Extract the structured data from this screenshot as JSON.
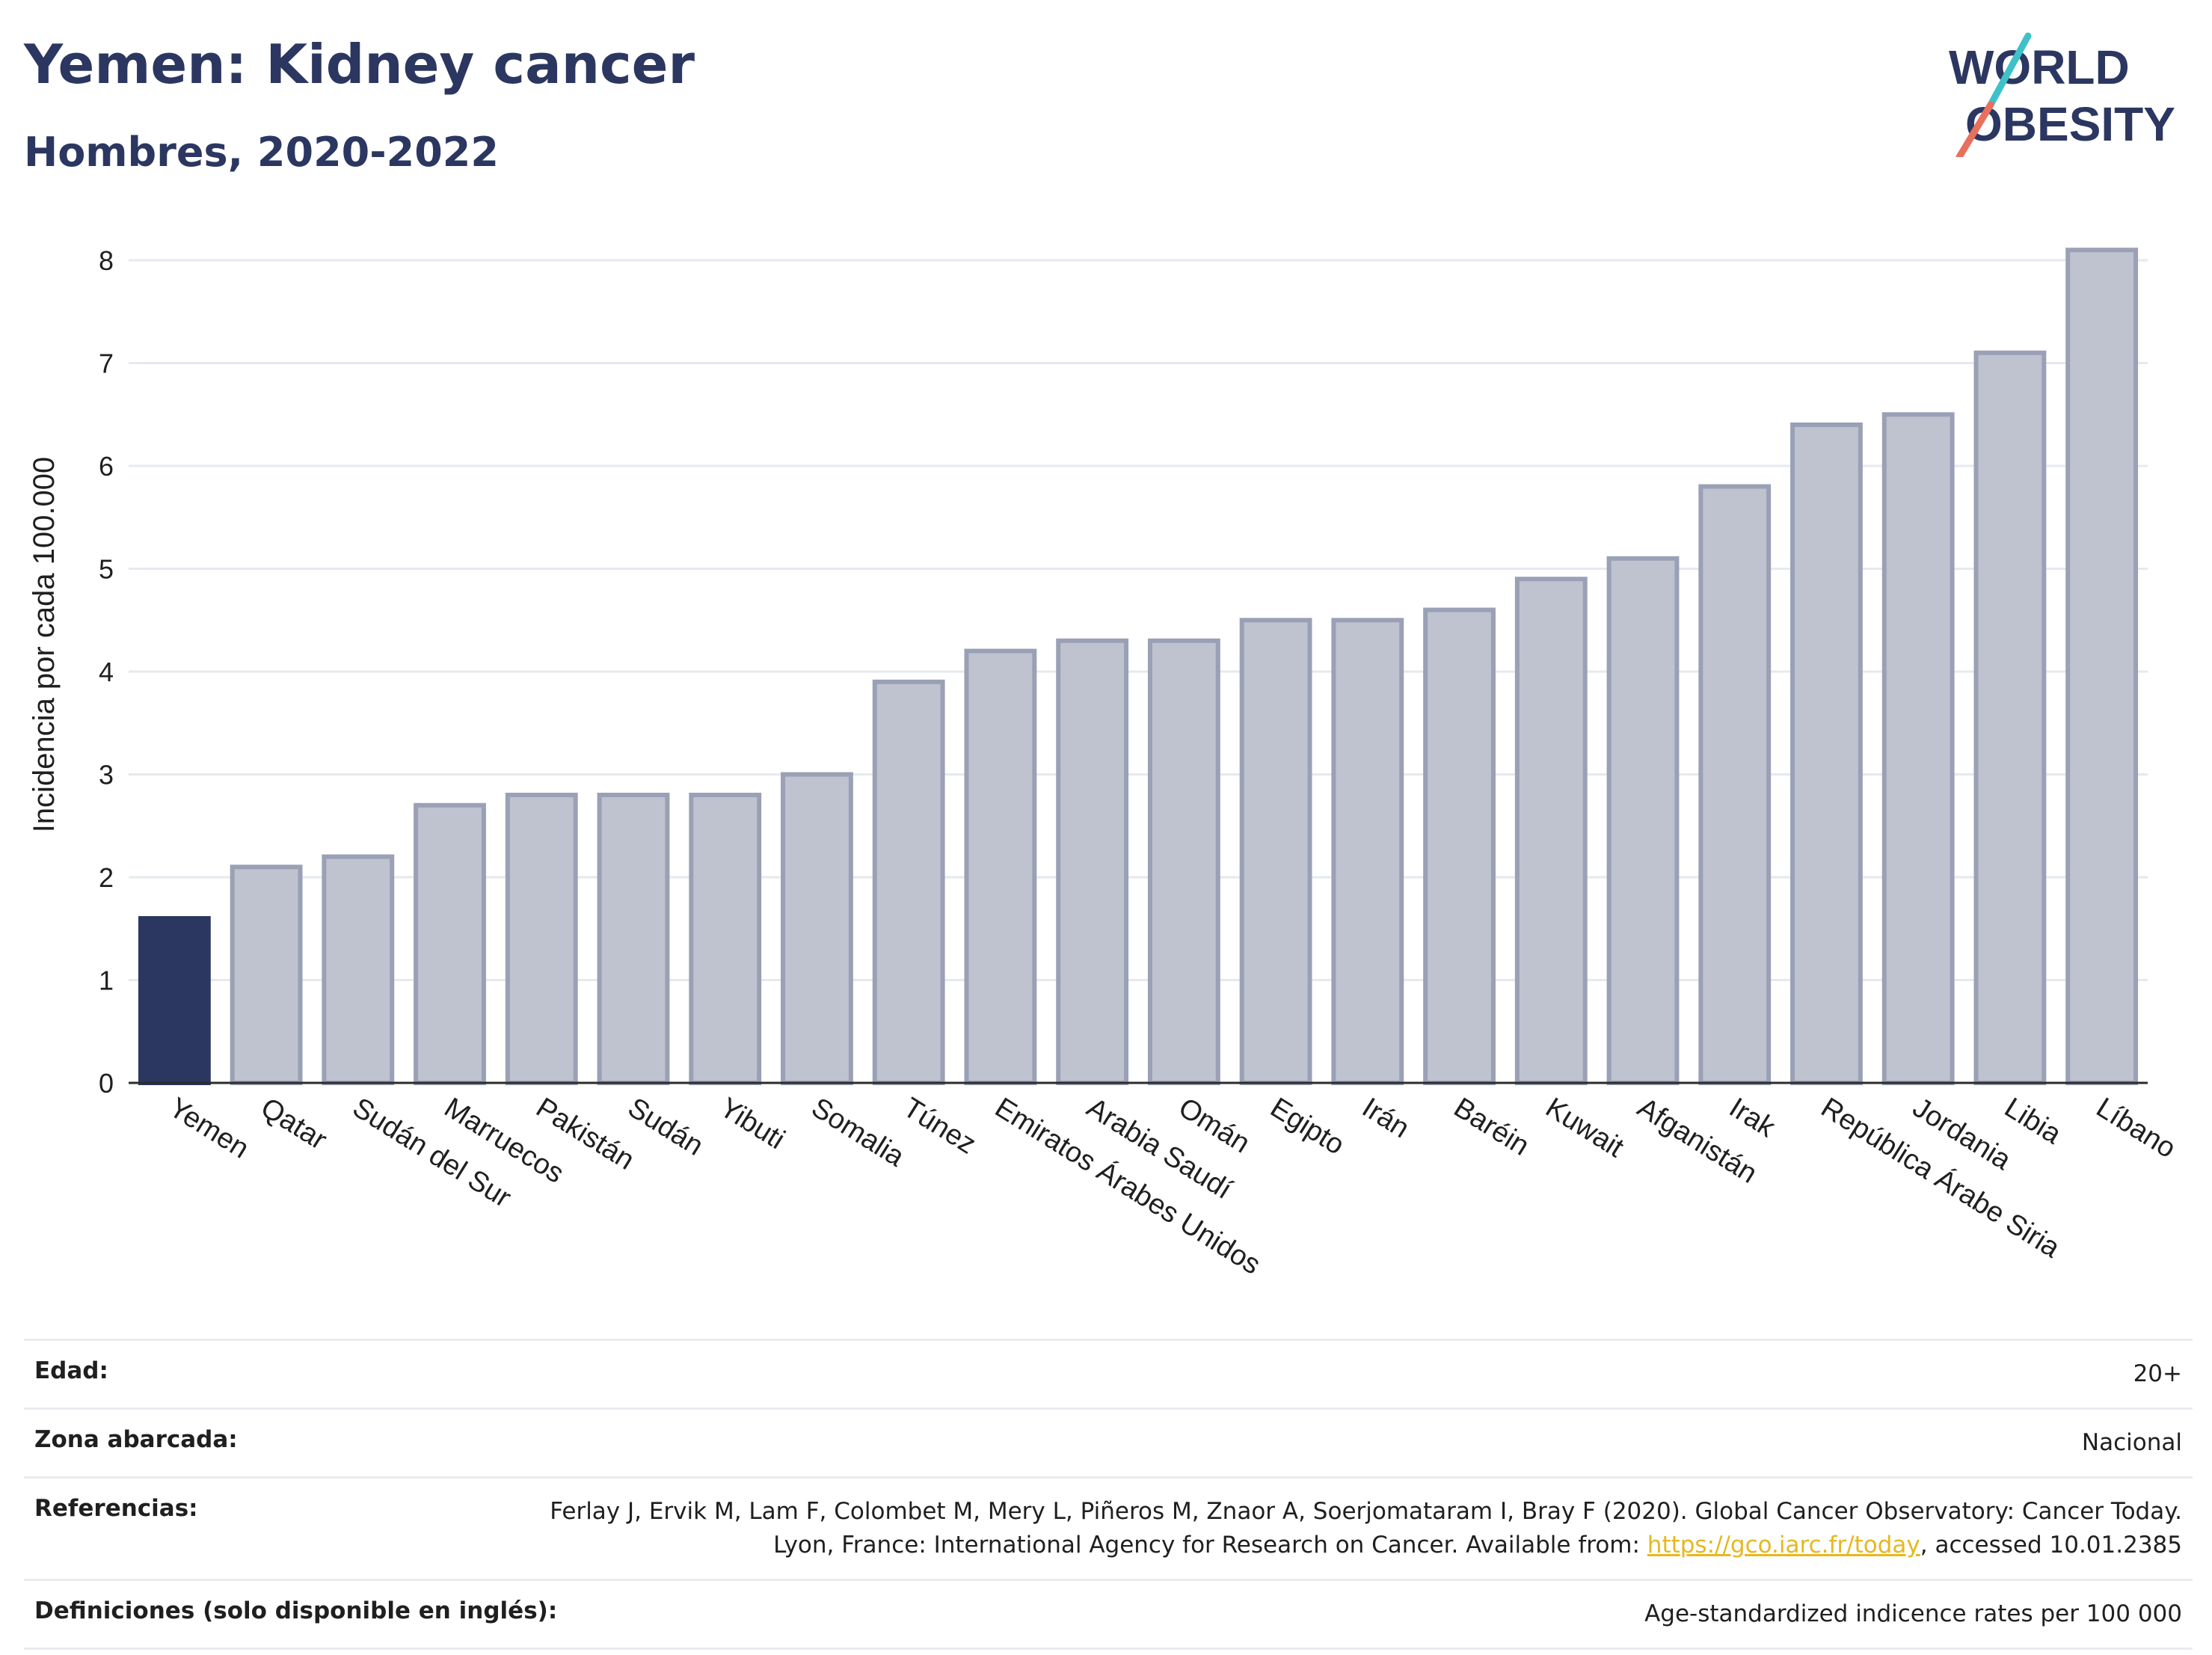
{
  "header": {
    "title": "Yemen: Kidney cancer",
    "subtitle": "Hombres, 2020-2022"
  },
  "logo": {
    "line1": "WORLD",
    "line2": "OBESITY"
  },
  "chart_data": {
    "type": "bar",
    "ylabel": "Incidencia por cada 100.000",
    "xlabel": "",
    "ylim": [
      0,
      8.3
    ],
    "yticks": [
      0,
      1,
      2,
      3,
      4,
      5,
      6,
      7,
      8
    ],
    "grid": true,
    "highlight": "Yemen",
    "colors": {
      "highlight": "#2b3760",
      "bar": "#bfc3cf",
      "bar_border": "#9aa0b5"
    },
    "categories": [
      "Yemen",
      "Qatar",
      "Sudán del Sur",
      "Marruecos",
      "Pakistán",
      "Sudán",
      "Yibuti",
      "Somalia",
      "Túnez",
      "Emiratos Árabes Unidos",
      "Arabia Saudí",
      "Omán",
      "Egipto",
      "Irán",
      "Baréin",
      "Kuwait",
      "Afganistán",
      "Irak",
      "República Árabe Siria",
      "Jordania",
      "Libia",
      "Líbano"
    ],
    "values": [
      1.6,
      2.1,
      2.2,
      2.7,
      2.8,
      2.8,
      2.8,
      3.0,
      3.9,
      4.2,
      4.3,
      4.3,
      4.5,
      4.5,
      4.6,
      4.9,
      5.1,
      5.8,
      6.4,
      6.5,
      7.1,
      8.1
    ]
  },
  "meta": {
    "age_label": "Edad:",
    "age_value": "20+",
    "area_label": "Zona abarcada:",
    "area_value": "Nacional",
    "refs_label": "Referencias:",
    "refs_text1": "Ferlay J, Ervik M, Lam F, Colombet M, Mery L, Piñeros M, Znaor A, Soerjomataram I, Bray F (2020). Global Cancer Observatory: Cancer Today. Lyon, France: International Agency for Research on Cancer. Available from: ",
    "refs_link": "https://gco.iarc.fr/today",
    "refs_text2": ", accessed 10.01.2385",
    "defs_label": "Definiciones (solo disponible en inglés):",
    "defs_value": "Age-standardized indicence rates per 100 000"
  }
}
